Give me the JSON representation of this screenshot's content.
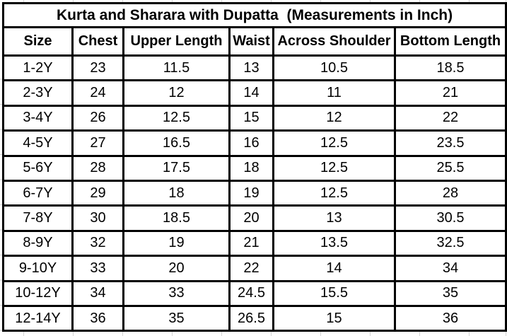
{
  "chart_data": {
    "type": "table",
    "title": "Kurta and Sharara with Dupatta  (Measurements in Inch)",
    "units": "Inch",
    "columns": [
      "Size",
      "Chest",
      "Upper Length",
      "Waist",
      "Across Shoulder",
      "Bottom Length"
    ],
    "rows": [
      [
        "1-2Y",
        "23",
        "11.5",
        "13",
        "10.5",
        "18.5"
      ],
      [
        "2-3Y",
        "24",
        "12",
        "14",
        "11",
        "21"
      ],
      [
        "3-4Y",
        "26",
        "12.5",
        "15",
        "12",
        "22"
      ],
      [
        "4-5Y",
        "27",
        "16.5",
        "16",
        "12.5",
        "23.5"
      ],
      [
        "5-6Y",
        "28",
        "17.5",
        "18",
        "12.5",
        "25.5"
      ],
      [
        "6-7Y",
        "29",
        "18",
        "19",
        "12.5",
        "28"
      ],
      [
        "7-8Y",
        "30",
        "18.5",
        "20",
        "13",
        "30.5"
      ],
      [
        "8-9Y",
        "32",
        "19",
        "21",
        "13.5",
        "32.5"
      ],
      [
        "9-10Y",
        "33",
        "20",
        "22",
        "14",
        "34"
      ],
      [
        "10-12Y",
        "34",
        "33",
        "24.5",
        "15.5",
        "35"
      ],
      [
        "12-14Y",
        "36",
        "35",
        "26.5",
        "15",
        "36"
      ]
    ],
    "colors": {
      "border": "#000000",
      "text": "#000000",
      "background": "#ffffff",
      "spreadsheet_gridline": "#d6d6d6"
    }
  }
}
